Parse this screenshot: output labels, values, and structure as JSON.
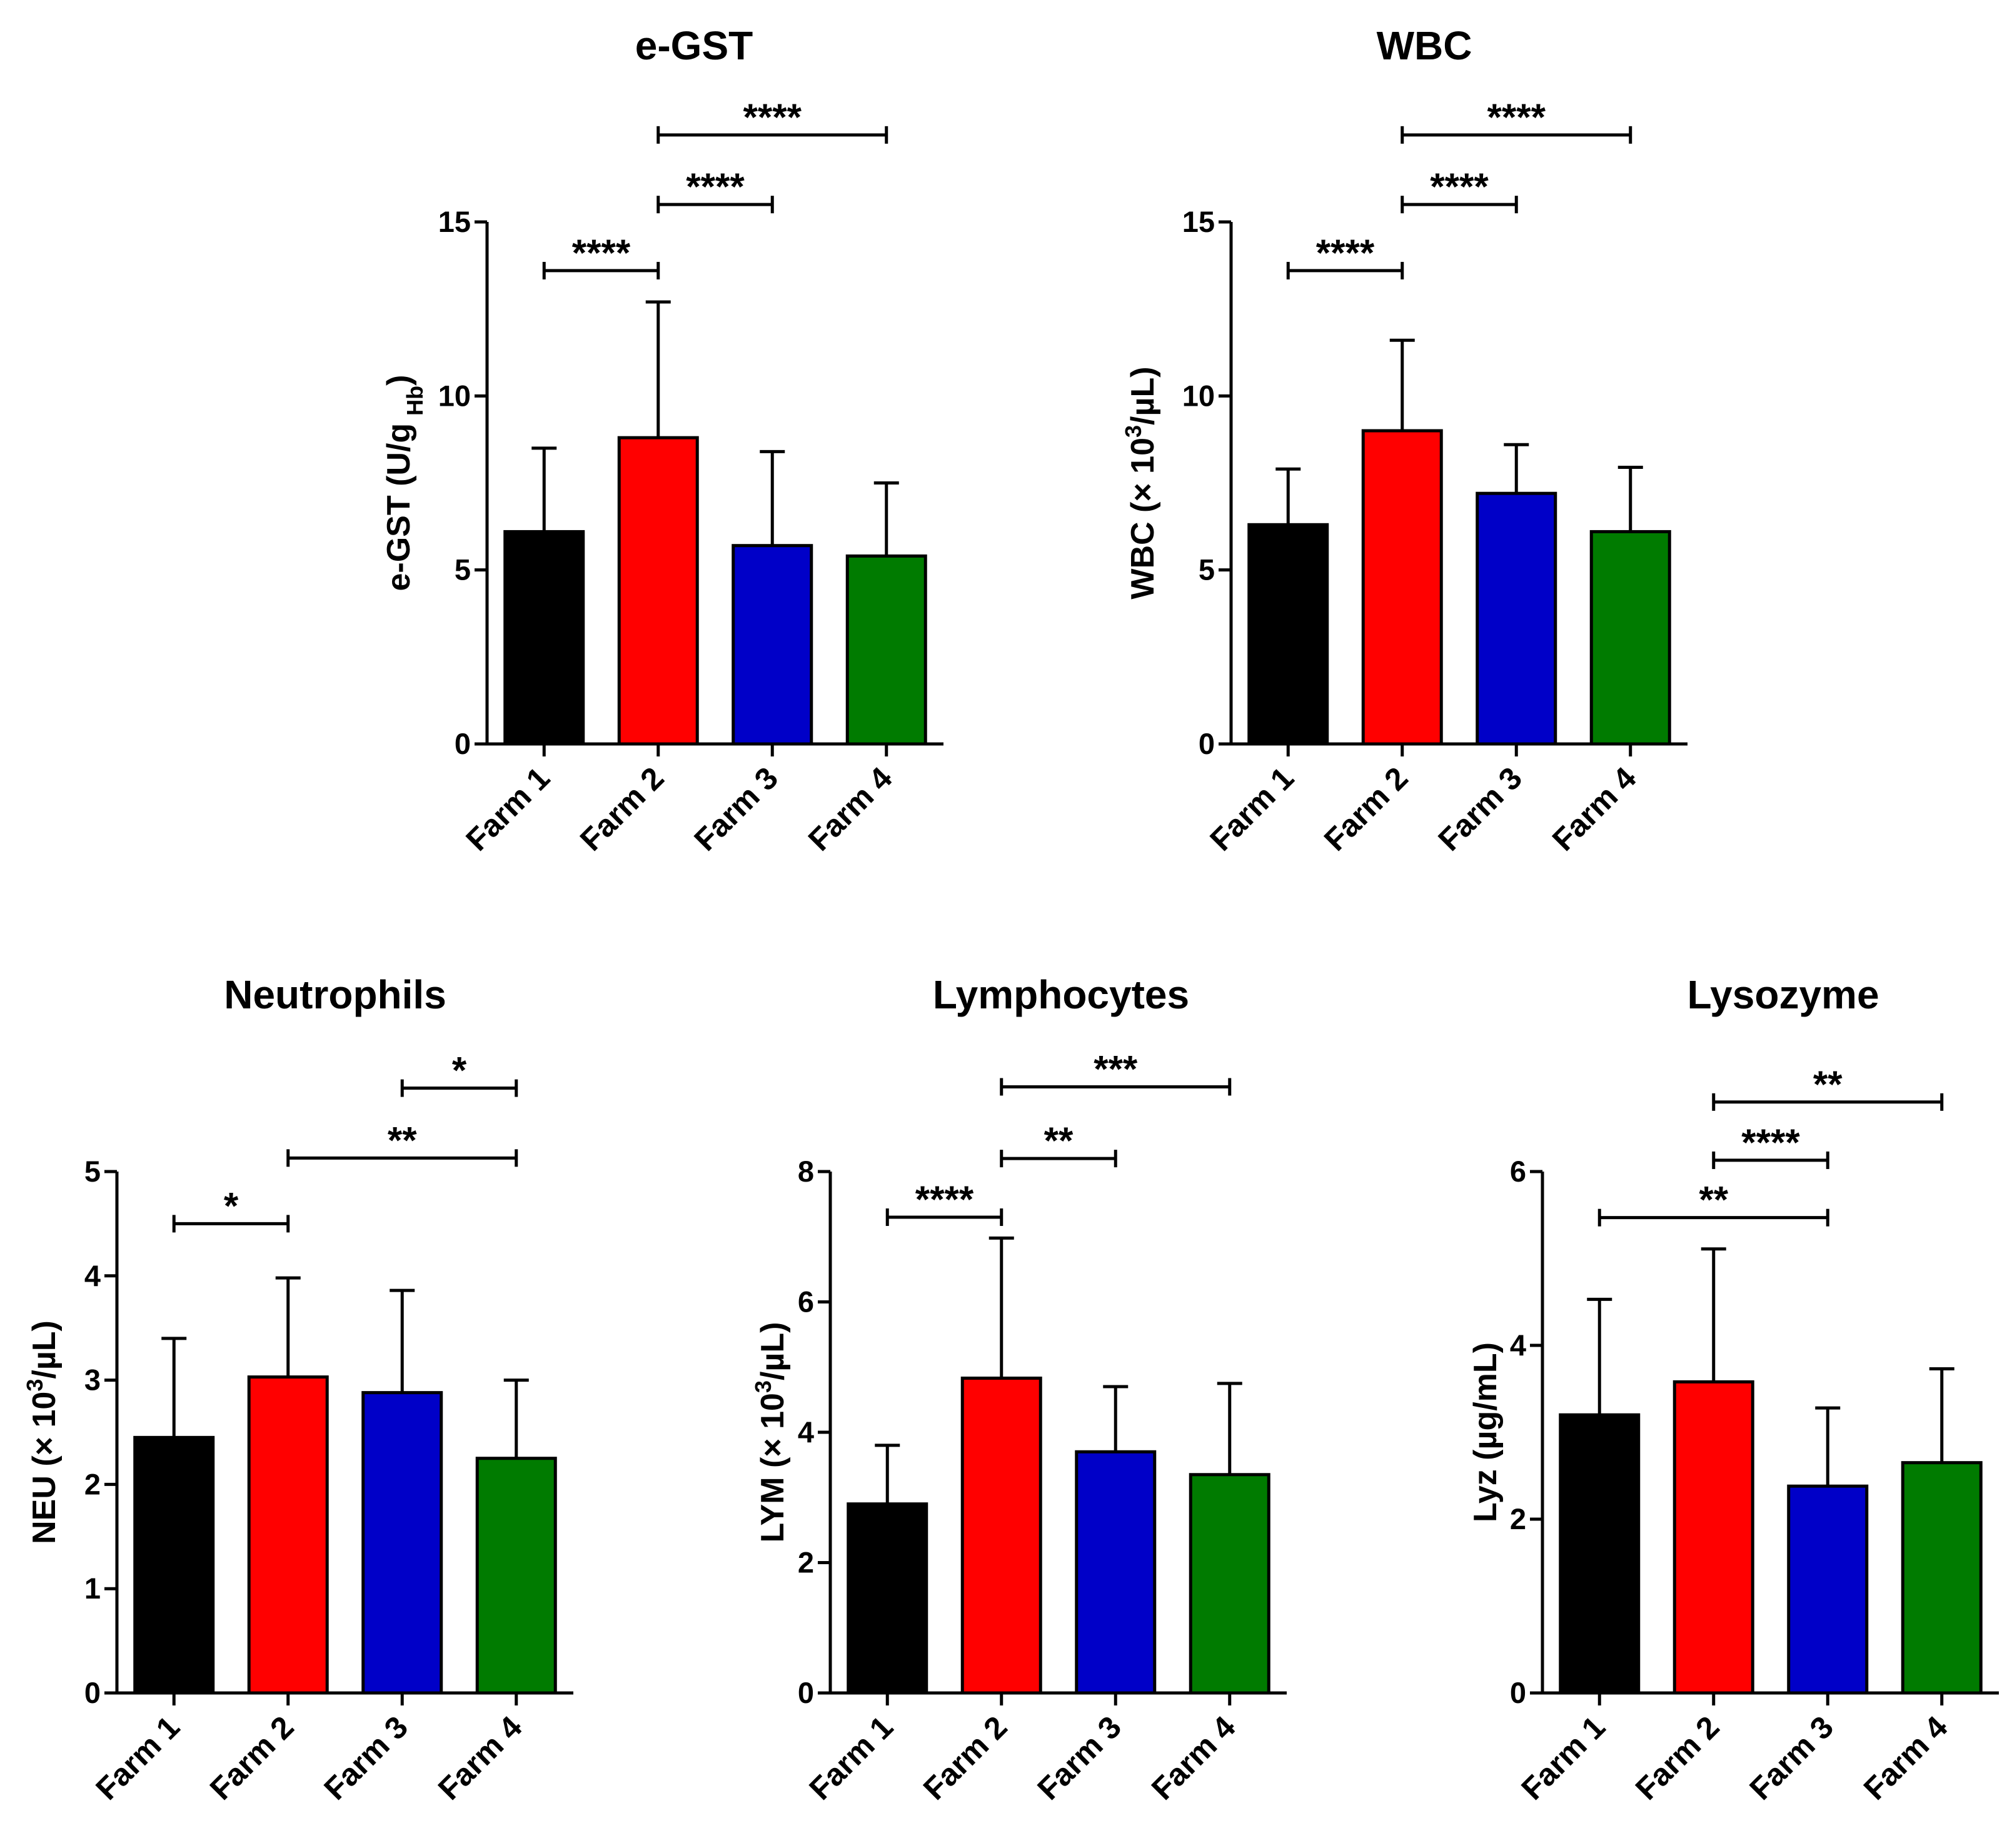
{
  "chart_data": [
    {
      "type": "bar",
      "title": "e-GST",
      "ylabel": "e-GST  (U/g",
      "ylabel_sub": "Hb",
      "ylabel_close": ")",
      "ylim": [
        0,
        15
      ],
      "yticks": [
        0,
        5,
        10,
        15
      ],
      "categories": [
        "Farm 1",
        "Farm 2",
        "Farm 3",
        "Farm 4"
      ],
      "values": [
        6.1,
        8.8,
        5.7,
        5.4
      ],
      "errors": [
        2.4,
        3.9,
        2.7,
        2.1
      ],
      "colors": [
        "#000000",
        "#ff0000",
        "#0000c8",
        "#007b00"
      ],
      "significance": [
        {
          "from": 0,
          "to": 1,
          "level": 13.6,
          "label": "****"
        },
        {
          "from": 1,
          "to": 2,
          "level": 15.5,
          "label": "****"
        },
        {
          "from": 1,
          "to": 3,
          "level": 17.5,
          "label": "****"
        }
      ]
    },
    {
      "type": "bar",
      "title": "WBC",
      "ylabel": "WBC (× 10",
      "ylabel_sup": "3",
      "ylabel_close": "/µL)",
      "ylim": [
        0,
        15
      ],
      "yticks": [
        0,
        5,
        10,
        15
      ],
      "categories": [
        "Farm 1",
        "Farm 2",
        "Farm 3",
        "Farm 4"
      ],
      "values": [
        6.3,
        9.0,
        7.2,
        6.1
      ],
      "errors": [
        1.6,
        2.6,
        1.4,
        1.85
      ],
      "colors": [
        "#000000",
        "#ff0000",
        "#0000c8",
        "#007b00"
      ],
      "significance": [
        {
          "from": 0,
          "to": 1,
          "level": 13.6,
          "label": "****"
        },
        {
          "from": 1,
          "to": 2,
          "level": 15.5,
          "label": "****"
        },
        {
          "from": 1,
          "to": 3,
          "level": 17.5,
          "label": "****"
        }
      ]
    },
    {
      "type": "bar",
      "title": "Neutrophils",
      "ylabel": "NEU (× 10",
      "ylabel_sup": "3",
      "ylabel_close": "/µL)",
      "ylim": [
        0,
        5
      ],
      "yticks": [
        0,
        1,
        2,
        3,
        4,
        5
      ],
      "categories": [
        "Farm 1",
        "Farm 2",
        "Farm 3",
        "Farm 4"
      ],
      "values": [
        2.45,
        3.03,
        2.88,
        2.25
      ],
      "errors": [
        0.95,
        0.95,
        0.98,
        0.75
      ],
      "colors": [
        "#000000",
        "#ff0000",
        "#0000c8",
        "#007b00"
      ],
      "significance": [
        {
          "from": 0,
          "to": 1,
          "level": 4.5,
          "label": "*"
        },
        {
          "from": 1,
          "to": 3,
          "level": 5.13,
          "label": "**"
        },
        {
          "from": 2,
          "to": 3,
          "level": 5.8,
          "label": "*"
        }
      ]
    },
    {
      "type": "bar",
      "title": "Lymphocytes",
      "ylabel": "LYM (× 10",
      "ylabel_sup": "3",
      "ylabel_close": "/µL)",
      "ylim": [
        0,
        8
      ],
      "yticks": [
        0,
        2,
        4,
        6,
        8
      ],
      "categories": [
        "Farm 1",
        "Farm 2",
        "Farm 3",
        "Farm 4"
      ],
      "values": [
        2.9,
        4.83,
        3.7,
        3.35
      ],
      "errors": [
        0.9,
        2.15,
        1.0,
        1.4
      ],
      "colors": [
        "#000000",
        "#ff0000",
        "#0000c8",
        "#007b00"
      ],
      "significance": [
        {
          "from": 0,
          "to": 1,
          "level": 7.3,
          "label": "****"
        },
        {
          "from": 1,
          "to": 2,
          "level": 8.2,
          "label": "**"
        },
        {
          "from": 1,
          "to": 3,
          "level": 9.3,
          "label": "***"
        }
      ]
    },
    {
      "type": "bar",
      "title": "Lysozyme",
      "ylabel": "Lyz (µg/mL)",
      "ylim": [
        0,
        6
      ],
      "yticks": [
        0,
        2,
        4,
        6
      ],
      "categories": [
        "Farm 1",
        "Farm 2",
        "Farm 3",
        "Farm 4"
      ],
      "values": [
        3.2,
        3.58,
        2.38,
        2.65
      ],
      "errors": [
        1.33,
        1.53,
        0.9,
        1.08
      ],
      "colors": [
        "#000000",
        "#ff0000",
        "#0000c8",
        "#007b00"
      ],
      "significance": [
        {
          "from": 0,
          "to": 2,
          "level": 5.47,
          "label": "**"
        },
        {
          "from": 1,
          "to": 2,
          "level": 6.13,
          "label": "****"
        },
        {
          "from": 1,
          "to": 3,
          "level": 6.8,
          "label": "**"
        }
      ]
    }
  ]
}
